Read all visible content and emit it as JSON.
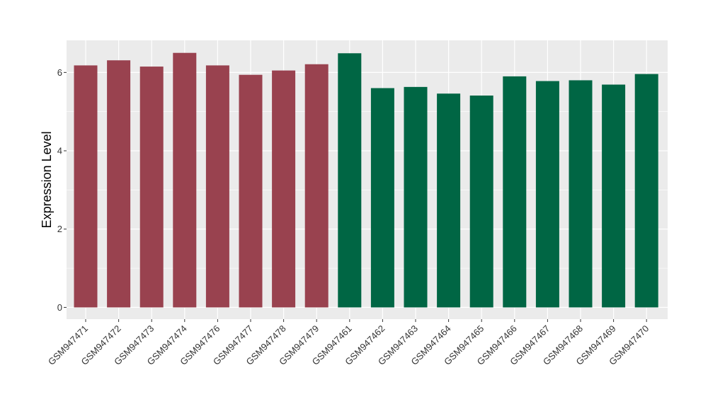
{
  "chart_data": {
    "type": "bar",
    "title": "",
    "xlabel": "",
    "ylabel": "Expression Level",
    "ylim": [
      -0.3,
      6.82
    ],
    "yticks": [
      0,
      2,
      4,
      6
    ],
    "grid": true,
    "legend": "none",
    "categories": [
      "GSM947471",
      "GSM947472",
      "GSM947473",
      "GSM947474",
      "GSM947476",
      "GSM947477",
      "GSM947478",
      "GSM947479",
      "GSM947461",
      "GSM947462",
      "GSM947463",
      "GSM947464",
      "GSM947465",
      "GSM947466",
      "GSM947467",
      "GSM947468",
      "GSM947469",
      "GSM947470"
    ],
    "values": [
      6.18,
      6.31,
      6.15,
      6.5,
      6.18,
      5.94,
      6.05,
      6.21,
      6.49,
      5.6,
      5.63,
      5.46,
      5.41,
      5.9,
      5.78,
      5.8,
      5.69,
      5.96
    ],
    "groups": [
      "a",
      "a",
      "a",
      "a",
      "a",
      "a",
      "a",
      "a",
      "b",
      "b",
      "b",
      "b",
      "b",
      "b",
      "b",
      "b",
      "b",
      "b"
    ],
    "colors": {
      "a": "#99424f",
      "b": "#006644",
      "panel": "#ebebeb",
      "grid": "#ffffff"
    }
  }
}
